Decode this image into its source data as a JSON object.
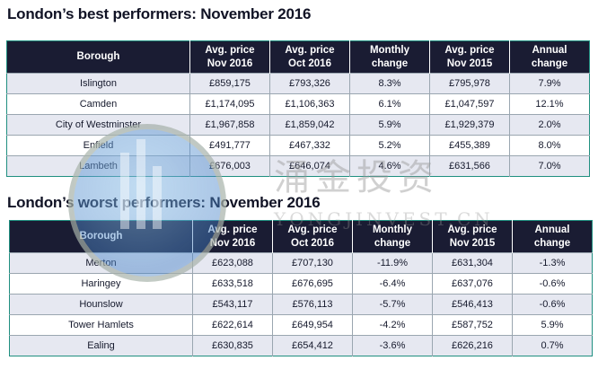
{
  "best": {
    "title": "London’s best performers: November 2016",
    "headers": [
      [
        "Borough"
      ],
      [
        "Avg. price",
        "Nov 2016"
      ],
      [
        "Avg. price",
        "Oct 2016"
      ],
      [
        "Monthly",
        "change"
      ],
      [
        "Avg. price",
        "Nov 2015"
      ],
      [
        "Annual",
        "change"
      ]
    ],
    "rows": [
      [
        "Islington",
        "£859,175",
        "£793,326",
        "8.3%",
        "£795,978",
        "7.9%"
      ],
      [
        "Camden",
        "£1,174,095",
        "£1,106,363",
        "6.1%",
        "£1,047,597",
        "12.1%"
      ],
      [
        "City of Westminster",
        "£1,967,858",
        "£1,859,042",
        "5.9%",
        "£1,929,379",
        "2.0%"
      ],
      [
        "Enfield",
        "£491,777",
        "£467,332",
        "5.2%",
        "£455,389",
        "8.0%"
      ],
      [
        "Lambeth",
        "£676,003",
        "£646,074",
        "4.6%",
        "£631,566",
        "7.0%"
      ]
    ]
  },
  "worst": {
    "title": "London’s worst performers: November 2016",
    "headers": [
      [
        "Borough"
      ],
      [
        "Avg. price",
        "Nov 2016"
      ],
      [
        "Avg. price",
        "Oct 2016"
      ],
      [
        "Monthly",
        "change"
      ],
      [
        "Avg. price",
        "Nov 2015"
      ],
      [
        "Annual",
        "change"
      ]
    ],
    "rows": [
      [
        "Merton",
        "£623,088",
        "£707,130",
        "-11.9%",
        "£631,304",
        "-1.3%"
      ],
      [
        "Haringey",
        "£633,518",
        "£676,695",
        "-6.4%",
        "£637,076",
        "-0.6%"
      ],
      [
        "Hounslow",
        "£543,117",
        "£576,113",
        "-5.7%",
        "£546,413",
        "-0.6%"
      ],
      [
        "Tower Hamlets",
        "£622,614",
        "£649,954",
        "-4.2%",
        "£587,752",
        "5.9%"
      ],
      [
        "Ealing",
        "£630,835",
        "£654,412",
        "-3.6%",
        "£626,216",
        "0.7%"
      ]
    ]
  },
  "watermark": {
    "cn": "涌金投资",
    "en": "YONGJINVEST.CN"
  },
  "colors": {
    "header_bg": "#1a1c33",
    "row_shade": "#e6e8f1",
    "table_border": "#1f8f80"
  }
}
